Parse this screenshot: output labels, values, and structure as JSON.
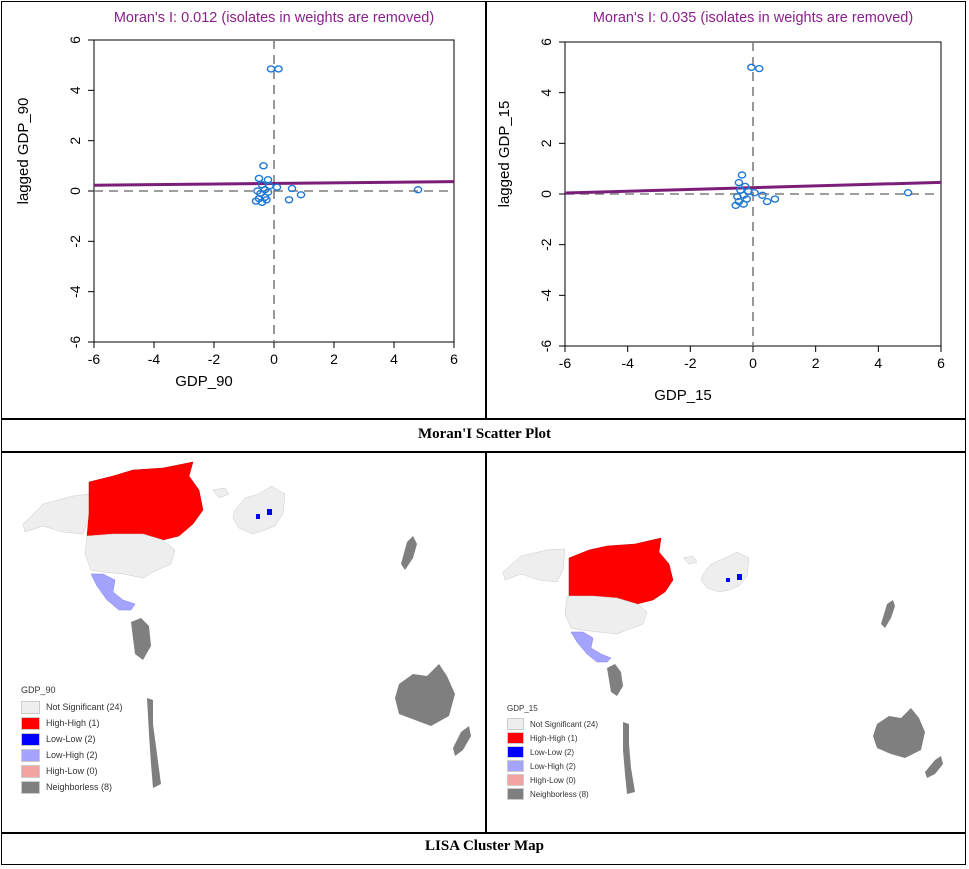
{
  "chart_data": [
    {
      "type": "scatter",
      "title": "Moran's I: 0.012 (isolates in weights are removed)",
      "xlabel": "GDP_90",
      "ylabel": "lagged GDP_90",
      "xlim": [
        -6,
        6
      ],
      "ylim": [
        -6,
        6
      ],
      "xticks": [
        "-6",
        "-4",
        "-2",
        "0",
        "2",
        "4",
        "6"
      ],
      "yticks": [
        "-6",
        "-4",
        "-2",
        "0",
        "2",
        "4",
        "6"
      ],
      "slope": 0.012,
      "intercept": 0.3,
      "colors": {
        "points": "#1f78d4",
        "fit_line": "#7b1e7a",
        "title": "#8b1f8b"
      },
      "points": [
        {
          "x": -0.1,
          "y": 4.85
        },
        {
          "x": 0.15,
          "y": 4.85
        },
        {
          "x": -0.35,
          "y": 1.0
        },
        {
          "x": -0.5,
          "y": 0.5
        },
        {
          "x": -0.2,
          "y": 0.45
        },
        {
          "x": -0.4,
          "y": 0.25
        },
        {
          "x": -0.15,
          "y": 0.2
        },
        {
          "x": 0.1,
          "y": 0.15
        },
        {
          "x": -0.3,
          "y": 0.05
        },
        {
          "x": -0.55,
          "y": 0.0
        },
        {
          "x": -0.2,
          "y": -0.05
        },
        {
          "x": -0.45,
          "y": -0.1
        },
        {
          "x": -0.3,
          "y": -0.25
        },
        {
          "x": -0.5,
          "y": -0.3
        },
        {
          "x": -0.25,
          "y": -0.35
        },
        {
          "x": -0.6,
          "y": -0.4
        },
        {
          "x": -0.4,
          "y": -0.45
        },
        {
          "x": 0.6,
          "y": 0.1
        },
        {
          "x": 0.9,
          "y": -0.15
        },
        {
          "x": 0.5,
          "y": -0.35
        },
        {
          "x": 4.8,
          "y": 0.05
        }
      ]
    },
    {
      "type": "scatter",
      "title": "Moran's I: 0.035 (isolates in weights are removed)",
      "xlabel": "GDP_15",
      "ylabel": "lagged GDP_15",
      "xlim": [
        -6,
        6
      ],
      "ylim": [
        -6,
        6
      ],
      "xticks": [
        "-6",
        "-4",
        "-2",
        "0",
        "2",
        "4",
        "6"
      ],
      "yticks": [
        "-6",
        "-4",
        "-2",
        "0",
        "2",
        "4",
        "6"
      ],
      "slope": 0.035,
      "intercept": 0.25,
      "colors": {
        "points": "#1f78d4",
        "fit_line": "#7b1e7a",
        "title": "#8b1f8b"
      },
      "points": [
        {
          "x": -0.05,
          "y": 5.0
        },
        {
          "x": 0.2,
          "y": 4.95
        },
        {
          "x": -0.35,
          "y": 0.75
        },
        {
          "x": -0.45,
          "y": 0.45
        },
        {
          "x": -0.25,
          "y": 0.3
        },
        {
          "x": -0.4,
          "y": 0.15
        },
        {
          "x": -0.15,
          "y": 0.1
        },
        {
          "x": 0.05,
          "y": 0.05
        },
        {
          "x": -0.3,
          "y": -0.05
        },
        {
          "x": -0.5,
          "y": -0.1
        },
        {
          "x": -0.2,
          "y": -0.2
        },
        {
          "x": -0.45,
          "y": -0.3
        },
        {
          "x": -0.3,
          "y": -0.4
        },
        {
          "x": -0.55,
          "y": -0.45
        },
        {
          "x": 0.3,
          "y": -0.05
        },
        {
          "x": 0.45,
          "y": -0.3
        },
        {
          "x": 0.7,
          "y": -0.2
        },
        {
          "x": 4.95,
          "y": 0.05
        }
      ]
    }
  ],
  "captions": {
    "scatter": "Moran'I  Scatter Plot",
    "lisa": "LISA Cluster Map"
  },
  "maps": [
    {
      "legend_title": "GDP_90",
      "items": [
        {
          "label": "Not Significant (24)",
          "color": "#eeeeee"
        },
        {
          "label": "High-High (1)",
          "color": "#ff0000"
        },
        {
          "label": "Low-Low (2)",
          "color": "#0000ff"
        },
        {
          "label": "Low-High (2)",
          "color": "#a4a4ff"
        },
        {
          "label": "High-Low (0)",
          "color": "#f4a3a3"
        },
        {
          "label": "Neighborless (8)",
          "color": "#7f7f7f"
        }
      ]
    },
    {
      "legend_title": "GDP_15",
      "items": [
        {
          "label": "Not Significant (24)",
          "color": "#eeeeee"
        },
        {
          "label": "High-High (1)",
          "color": "#ff0000"
        },
        {
          "label": "Low-Low (2)",
          "color": "#0000ff"
        },
        {
          "label": "Low-High (2)",
          "color": "#a4a4ff"
        },
        {
          "label": "High-Low (0)",
          "color": "#f4a3a3"
        },
        {
          "label": "Neighborless (8)",
          "color": "#7f7f7f"
        }
      ]
    }
  ]
}
